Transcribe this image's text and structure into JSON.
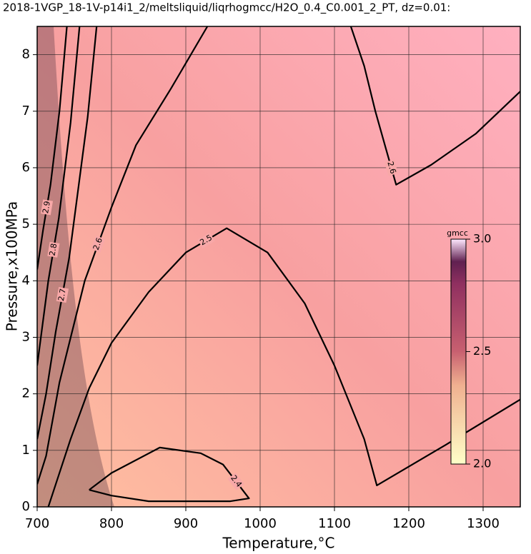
{
  "chart_data": {
    "type": "contour",
    "title": "2018-1VGP_18-1V-p14i1_2/meltsliquid/liqrhogmcc/H2O_0.4_C0.001_2_PT, dz=0.01:",
    "xlabel": "Temperature,°C",
    "ylabel": "Pressure,x100MPa",
    "xlim": [
      700,
      1350
    ],
    "ylim": [
      0,
      8.5
    ],
    "xticks": [
      700,
      800,
      900,
      1000,
      1100,
      1200,
      1300
    ],
    "yticks": [
      0,
      1,
      2,
      3,
      4,
      5,
      6,
      7,
      8
    ],
    "grid": true,
    "colorbar": {
      "label": "gmcc",
      "lim": [
        2.0,
        3.0
      ],
      "ticks": [
        {
          "value": 2.0,
          "label": "2.0"
        },
        {
          "value": 2.5,
          "label": "2.5"
        },
        {
          "value": 3.0,
          "label": "3.0"
        }
      ]
    },
    "contours": [
      {
        "level": 2.6,
        "x": [
          1122,
          1140,
          1155,
          1170,
          1183,
          1230,
          1290,
          1350
        ],
        "y": [
          8.5,
          7.8,
          7.0,
          6.3,
          5.7,
          6.05,
          6.6,
          7.35
        ]
      },
      {
        "level": 2.5,
        "x": [
          1350,
          1250,
          1157,
          1140,
          1100,
          1060,
          1010,
          955,
          900,
          850,
          800,
          770,
          745,
          725,
          715
        ],
        "y": [
          1.9,
          1.1,
          0.38,
          1.2,
          2.5,
          3.6,
          4.5,
          4.93,
          4.5,
          3.8,
          2.9,
          2.1,
          1.2,
          0.4,
          0
        ]
      },
      {
        "level": 2.6,
        "x": [
          929,
          880,
          833,
          800,
          764,
          730,
          712,
          700
        ],
        "y": [
          8.5,
          7.4,
          6.4,
          5.3,
          4.0,
          2.2,
          0.9,
          0.4
        ]
      },
      {
        "level": 2.7,
        "x": [
          780,
          768,
          755,
          743,
          725,
          712,
          700
        ],
        "y": [
          8.5,
          6.9,
          5.6,
          4.4,
          3.1,
          2.0,
          1.2
        ]
      },
      {
        "level": 2.8,
        "x": [
          757,
          745,
          729,
          715,
          705,
          700
        ],
        "y": [
          8.5,
          6.8,
          5.1,
          4.0,
          3.0,
          2.5
        ]
      },
      {
        "level": 2.9,
        "x": [
          740,
          730,
          718,
          708,
          700
        ],
        "y": [
          8.5,
          7.0,
          5.7,
          4.9,
          4.2
        ]
      },
      {
        "level": 2.4,
        "x": [
          770,
          800,
          865,
          920,
          950,
          985,
          960,
          850,
          800,
          770
        ],
        "y": [
          0.3,
          0.6,
          1.05,
          0.95,
          0.75,
          0.15,
          0.1,
          0.1,
          0.2,
          0.3
        ]
      }
    ]
  }
}
